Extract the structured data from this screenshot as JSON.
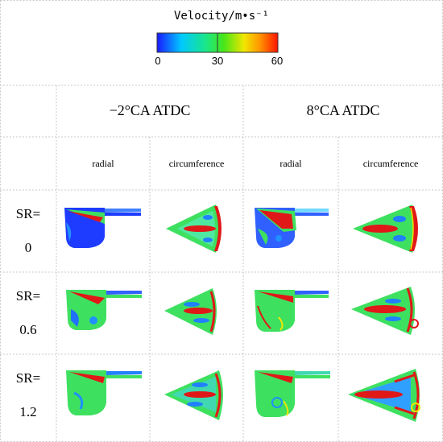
{
  "legend": {
    "title": "Velocity/m•s⁻¹",
    "ticks": [
      "0",
      "30",
      "60"
    ],
    "gradient": [
      "#1a1aff",
      "#00c8ff",
      "#19e68c",
      "#46e619",
      "#f0e600",
      "#ff9600",
      "#ff1400"
    ]
  },
  "header": {
    "col_groups": [
      "−2°CA ATDC",
      "8°CA ATDC"
    ],
    "sub_cols": [
      "radial",
      "circumference",
      "radial",
      "circumference"
    ]
  },
  "rows": [
    {
      "label_top": "SR=",
      "label_bottom": "0"
    },
    {
      "label_top": "SR=",
      "label_bottom": "0.6"
    },
    {
      "label_top": "SR=",
      "label_bottom": "1.2"
    }
  ],
  "colors": {
    "grid_line": "#c8c8c8",
    "jet_red": "#e01818",
    "field_green": "#3ee060",
    "field_blue": "#3060ff",
    "low_blue": "#1020e8"
  }
}
